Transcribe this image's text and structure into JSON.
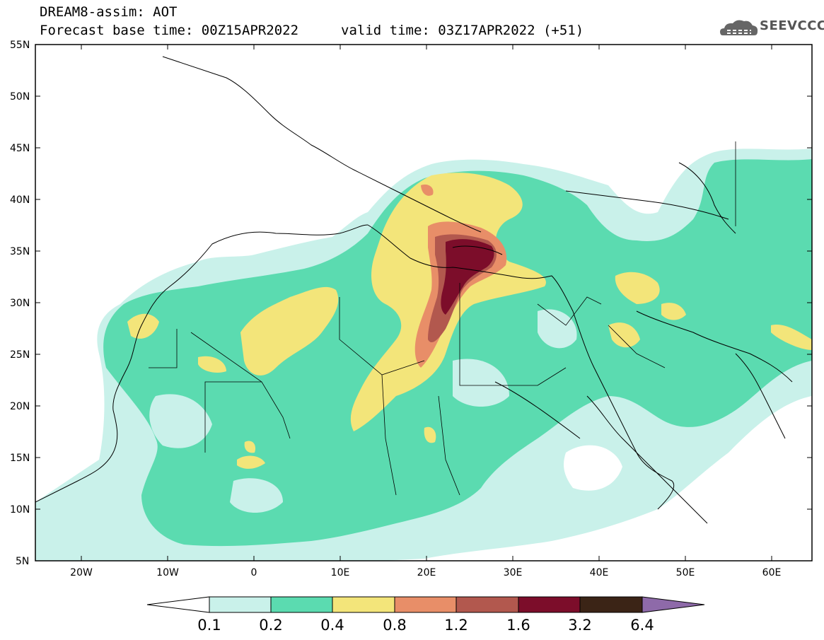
{
  "header": {
    "line1": "DREAM8-assim: AOT",
    "line2_left": "Forecast base time: 00Z15APR2022",
    "line2_right": "valid time: 03Z17APR2022 (+51)"
  },
  "logo": {
    "text": "SEEVCCC",
    "icon": "cloud-logo-icon"
  },
  "map": {
    "lat_labels": [
      "55N",
      "50N",
      "45N",
      "40N",
      "35N",
      "30N",
      "25N",
      "20N",
      "15N",
      "10N",
      "5N"
    ],
    "lon_labels": [
      "20W",
      "10W",
      "0",
      "10E",
      "20E",
      "30E",
      "40E",
      "50E",
      "60E"
    ],
    "lat_range": [
      5,
      55
    ],
    "lon_range": [
      -25,
      65
    ]
  },
  "colorbar": {
    "labels": [
      "0.1",
      "0.2",
      "0.4",
      "0.8",
      "1.2",
      "1.6",
      "3.2",
      "6.4"
    ],
    "colors": [
      "#ffffff",
      "#c9f1ea",
      "#5bdbb0",
      "#f3e57a",
      "#e88e68",
      "#b2584e",
      "#7c0d2a",
      "#3b2416",
      "#8e6aa9"
    ]
  }
}
